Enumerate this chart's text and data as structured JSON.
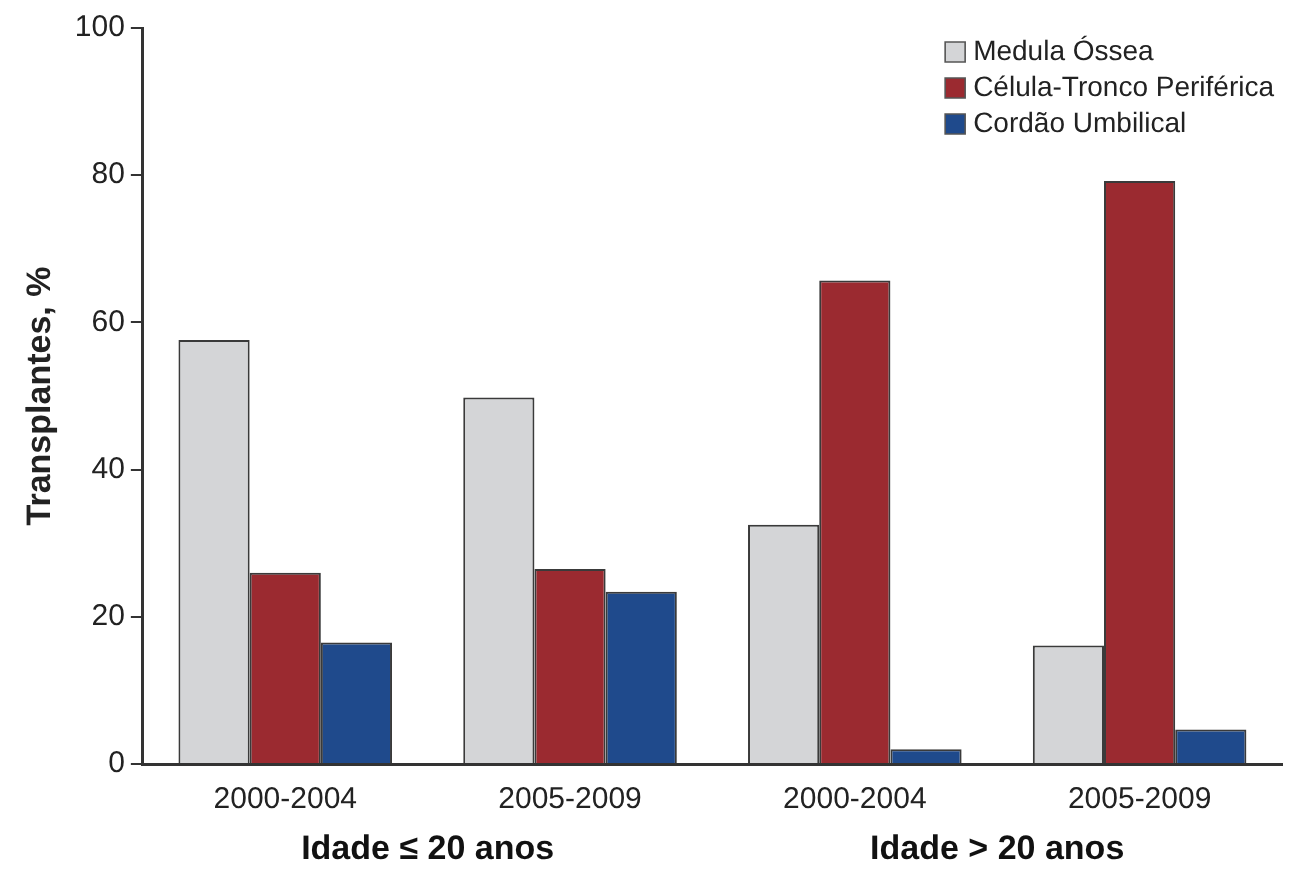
{
  "chart_data": {
    "type": "bar",
    "ylabel": "Transplantes, %",
    "categories": [
      "2000-2004",
      "2005-2009",
      "2000-2004",
      "2005-2009"
    ],
    "series": [
      {
        "name": "Medula Óssea",
        "color": "#d4d5d7",
        "values": [
          57.6,
          49.8,
          32.5,
          16.1
        ]
      },
      {
        "name": "Célula-Tronco Periférica",
        "color": "#9b2a30",
        "values": [
          26.0,
          26.5,
          65.7,
          79.2
        ]
      },
      {
        "name": "Cordão Umbilical",
        "color": "#1f4a8c",
        "values": [
          16.5,
          23.4,
          2.0,
          4.7
        ]
      }
    ],
    "ylim": [
      0,
      100
    ],
    "yticks": [
      0,
      20,
      40,
      60,
      80,
      100
    ],
    "grid": false,
    "legend": "top right",
    "annotations": [
      "Idade ≤ 20 anos",
      "Idade > 20 anos"
    ]
  }
}
